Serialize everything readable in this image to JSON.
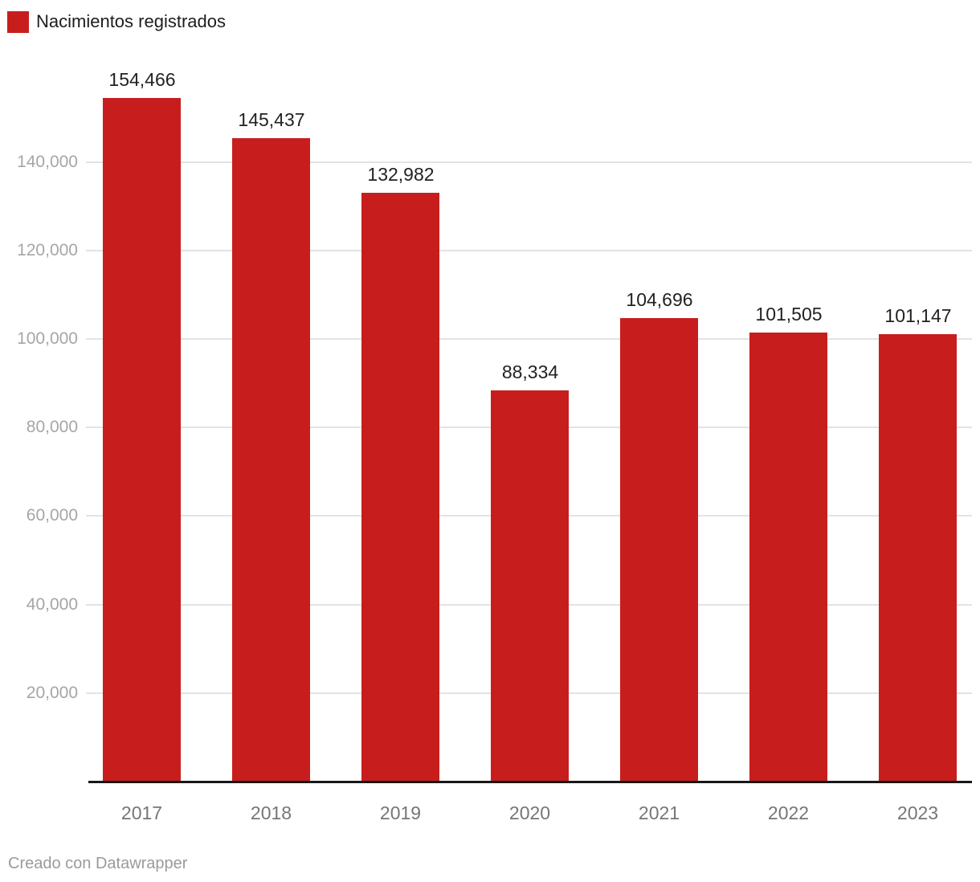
{
  "legend": {
    "label": "Nacimientos registrados"
  },
  "footer": {
    "credit": "Creado con Datawrapper"
  },
  "colors": {
    "bar": "#c71e1d",
    "grid": "#e3e3e3",
    "baseline": "#181818",
    "value_label": "#222222",
    "y_tick_label": "#a6a6a6",
    "x_tick_label": "#767676",
    "footer": "#9a9a9a",
    "legend_text": "#1d1d1d"
  },
  "chart_data": {
    "type": "bar",
    "title": "",
    "xlabel": "",
    "ylabel": "",
    "series_name": "Nacimientos registrados",
    "categories": [
      "2017",
      "2018",
      "2019",
      "2020",
      "2021",
      "2022",
      "2023"
    ],
    "values": [
      154466,
      145437,
      132982,
      88334,
      104696,
      101505,
      101147
    ],
    "value_labels": [
      "154,466",
      "145,437",
      "132,982",
      "88,334",
      "104,696",
      "101,505",
      "101,147"
    ],
    "y_ticks": [
      20000,
      40000,
      60000,
      80000,
      100000,
      120000,
      140000
    ],
    "y_tick_labels": [
      "20,000",
      "40,000",
      "60,000",
      "80,000",
      "100,000",
      "120,000",
      "140,000"
    ],
    "ylim": [
      0,
      157000
    ],
    "grid": true,
    "legend_position": "top-left",
    "bar_color": "#c71e1d"
  }
}
